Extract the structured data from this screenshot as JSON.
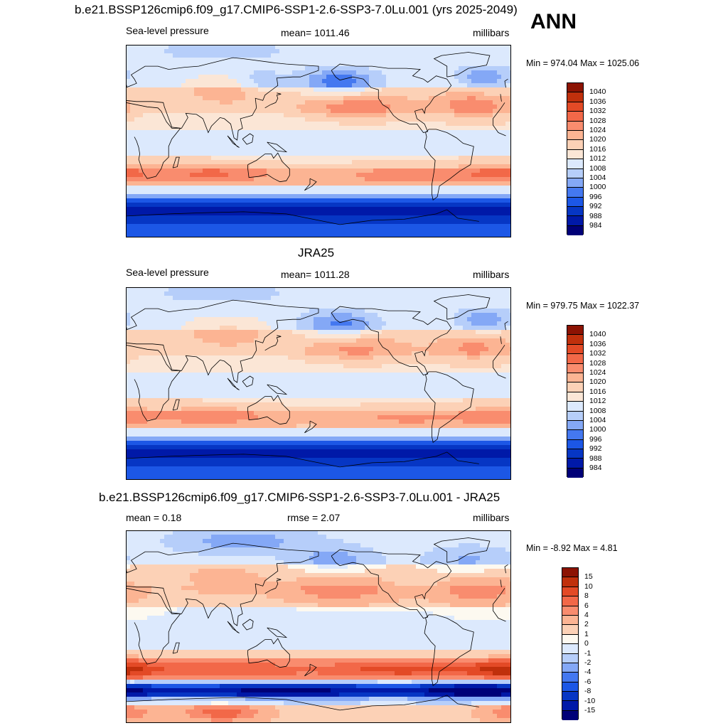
{
  "season": "ANN",
  "colors": {
    "pressure": [
      "#000078",
      "#0019a8",
      "#0636c4",
      "#1c57e6",
      "#4478f0",
      "#84a8f6",
      "#b6cefa",
      "#dce9fd",
      "#fbe6d6",
      "#fcd1b6",
      "#fcb493",
      "#f98c6e",
      "#f26848",
      "#e34a26",
      "#c0300c",
      "#8c1303"
    ],
    "difference": [
      "#000078",
      "#0019a8",
      "#0636c4",
      "#1c57e6",
      "#4478f0",
      "#84a8f6",
      "#b6cefa",
      "#dce9fd",
      "#fdf9f0",
      "#fcd1b6",
      "#fcb493",
      "#f98c6e",
      "#f26848",
      "#e34a26",
      "#c0300c",
      "#8c1303"
    ]
  },
  "panels": [
    {
      "title": "b.e21.BSSP126cmip6.f09_g17.CMIP6-SSP1-2.6-SSP3-7.0Lu.001 (yrs 2025-2049)",
      "left": "Sea-level pressure",
      "center": "mean= 1011.46",
      "right": "millibars",
      "minmax": "Min = 974.04 Max = 1025.06",
      "colorbar": [
        "1040",
        "1036",
        "1032",
        "1028",
        "1024",
        "1020",
        "1016",
        "1012",
        "1008",
        "1004",
        "1000",
        "996",
        "992",
        "988",
        "984"
      ],
      "palette": "pressure",
      "field": [
        {
          "lat": 85,
          "lon": 90,
          "v": -1.5,
          "sx": 60,
          "sy": 10
        },
        {
          "lat": 55,
          "lon": 200,
          "v": -3.5,
          "sx": 25,
          "sy": 9
        },
        {
          "lat": 55,
          "lon": 125,
          "v": -1.5,
          "sx": 18,
          "sy": 8
        },
        {
          "lat": 60,
          "lon": 335,
          "v": -2.5,
          "sx": 18,
          "sy": 8
        },
        {
          "lat": 48,
          "lon": 95,
          "v": 1.5,
          "sx": 25,
          "sy": 10
        },
        {
          "lat": 32,
          "lon": 215,
          "v": 2.5,
          "sx": 35,
          "sy": 9
        },
        {
          "lat": 33,
          "lon": 325,
          "v": 2.5,
          "sx": 25,
          "sy": 9
        },
        {
          "lat": -30,
          "lon": 80,
          "v": 2.5,
          "sx": 45,
          "sy": 7
        },
        {
          "lat": -32,
          "lon": 265,
          "v": 2,
          "sx": 55,
          "sy": 7
        },
        {
          "lat": -30,
          "lon": 350,
          "v": 2,
          "sx": 25,
          "sy": 7
        },
        {
          "lat": 0,
          "lon": 160,
          "v": -0.8,
          "sx": 80,
          "sy": 12
        }
      ]
    },
    {
      "title": "JRA25",
      "left": "Sea-level pressure",
      "center": "mean= 1011.28",
      "right": "millibars",
      "minmax": "Min = 979.75 Max = 1022.37",
      "colorbar": [
        "1040",
        "1036",
        "1032",
        "1028",
        "1024",
        "1020",
        "1016",
        "1012",
        "1008",
        "1004",
        "1000",
        "996",
        "992",
        "988",
        "984"
      ],
      "palette": "pressure",
      "field": [
        {
          "lat": 85,
          "lon": 90,
          "v": -1.5,
          "sx": 60,
          "sy": 10
        },
        {
          "lat": 55,
          "lon": 200,
          "v": -3,
          "sx": 25,
          "sy": 9
        },
        {
          "lat": 60,
          "lon": 335,
          "v": -2.5,
          "sx": 18,
          "sy": 8
        },
        {
          "lat": 48,
          "lon": 95,
          "v": 1.5,
          "sx": 25,
          "sy": 10
        },
        {
          "lat": 32,
          "lon": 215,
          "v": 2,
          "sx": 35,
          "sy": 9
        },
        {
          "lat": 33,
          "lon": 325,
          "v": 2,
          "sx": 25,
          "sy": 9
        },
        {
          "lat": -30,
          "lon": 80,
          "v": 2,
          "sx": 45,
          "sy": 7
        },
        {
          "lat": -32,
          "lon": 265,
          "v": 1.5,
          "sx": 55,
          "sy": 7
        },
        {
          "lat": -30,
          "lon": 350,
          "v": 1.5,
          "sx": 25,
          "sy": 7
        },
        {
          "lat": 0,
          "lon": 160,
          "v": -0.6,
          "sx": 80,
          "sy": 12
        }
      ]
    },
    {
      "title": "b.e21.BSSP126cmip6.f09_g17.CMIP6-SSP1-2.6-SSP3-7.0Lu.001 - JRA25",
      "left": "mean =   0.18",
      "center": "rmse =   2.07",
      "right": "millibars",
      "minmax": "Min =  -8.92 Max =   4.81",
      "colorbar": [
        "15",
        "10",
        "8",
        "6",
        "4",
        "2",
        "1",
        "0",
        "-1",
        "-2",
        "-4",
        "-6",
        "-8",
        "-10",
        "-15"
      ],
      "palette": "difference",
      "field": [
        {
          "lat": 35,
          "lon": 200,
          "v": 2.2,
          "sx": 40,
          "sy": 10
        },
        {
          "lat": 35,
          "lon": 330,
          "v": 2.2,
          "sx": 30,
          "sy": 10
        },
        {
          "lat": 45,
          "lon": 90,
          "v": 1.5,
          "sx": 30,
          "sy": 10
        },
        {
          "lat": 62,
          "lon": 195,
          "v": -2,
          "sx": 25,
          "sy": 8
        },
        {
          "lat": 80,
          "lon": 110,
          "v": -2,
          "sx": 40,
          "sy": 8
        },
        {
          "lat": 62,
          "lon": 320,
          "v": -1.5,
          "sx": 25,
          "sy": 8
        },
        {
          "lat": -40,
          "lon": 90,
          "v": 3,
          "sx": 60,
          "sy": 7
        },
        {
          "lat": -40,
          "lon": 260,
          "v": 3.5,
          "sx": 60,
          "sy": 7
        },
        {
          "lat": -40,
          "lon": 355,
          "v": 3,
          "sx": 25,
          "sy": 7
        },
        {
          "lat": -60,
          "lon": 150,
          "v": -5,
          "sx": 100,
          "sy": 5
        },
        {
          "lat": -60,
          "lon": 330,
          "v": -5,
          "sx": 40,
          "sy": 5
        },
        {
          "lat": -80,
          "lon": 90,
          "v": 3,
          "sx": 25,
          "sy": 6
        },
        {
          "lat": -80,
          "lon": 0,
          "v": 2,
          "sx": 20,
          "sy": 6
        },
        {
          "lat": 0,
          "lon": 180,
          "v": -0.6,
          "sx": 60,
          "sy": 12
        }
      ]
    }
  ]
}
